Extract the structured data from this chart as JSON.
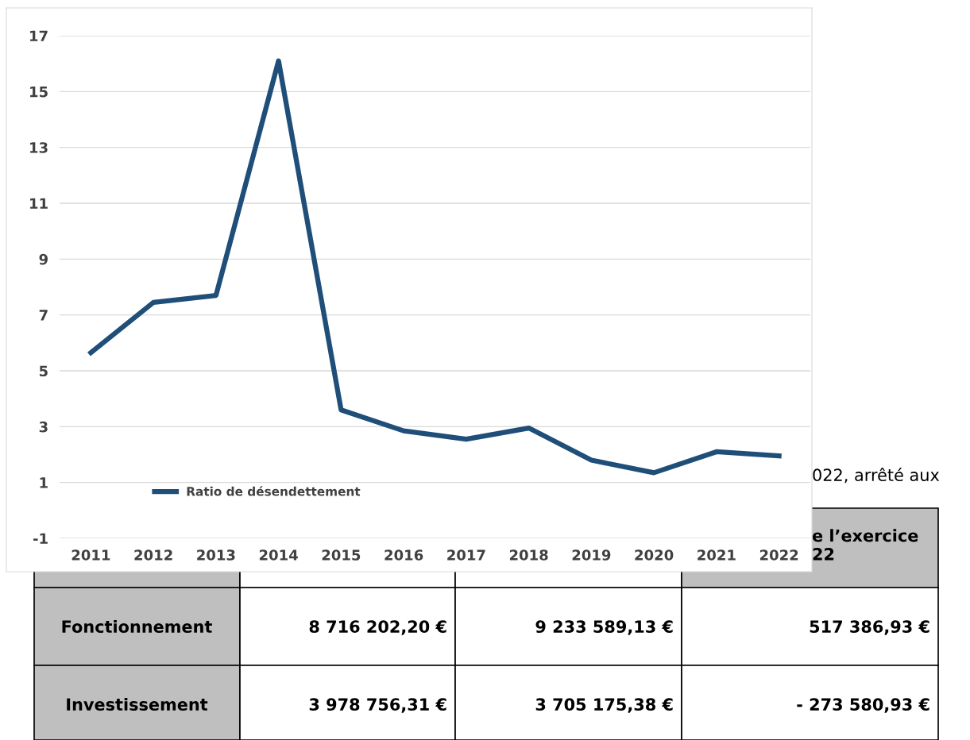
{
  "chart_data": {
    "type": "line",
    "categories": [
      "2011",
      "2012",
      "2013",
      "2014",
      "2015",
      "2016",
      "2017",
      "2018",
      "2019",
      "2020",
      "2021",
      "2022"
    ],
    "series": [
      {
        "name": "Ratio de désendettement",
        "color": "#1f4e79",
        "values": [
          5.65,
          7.45,
          7.7,
          16.1,
          3.6,
          2.85,
          2.55,
          2.95,
          1.8,
          1.35,
          2.1,
          1.95
        ]
      }
    ],
    "ylim": [
      -1,
      17
    ],
    "yticks": [
      -1,
      1,
      3,
      5,
      7,
      9,
      11,
      13,
      15,
      17
    ],
    "grid": "y",
    "legend": "bottom left",
    "marker": "none",
    "line_style": "solid",
    "annotations": [
      "022, arrêté aux",
      "e l’exercice\n22",
      "Fonctionnement",
      "8 716 202,20 €",
      "9 233 589,13 €",
      "517 386,93 €",
      "Investissement",
      "3 978 756,31 €",
      "3 705 175,38 €",
      "- 273 580,93 €"
    ]
  }
}
